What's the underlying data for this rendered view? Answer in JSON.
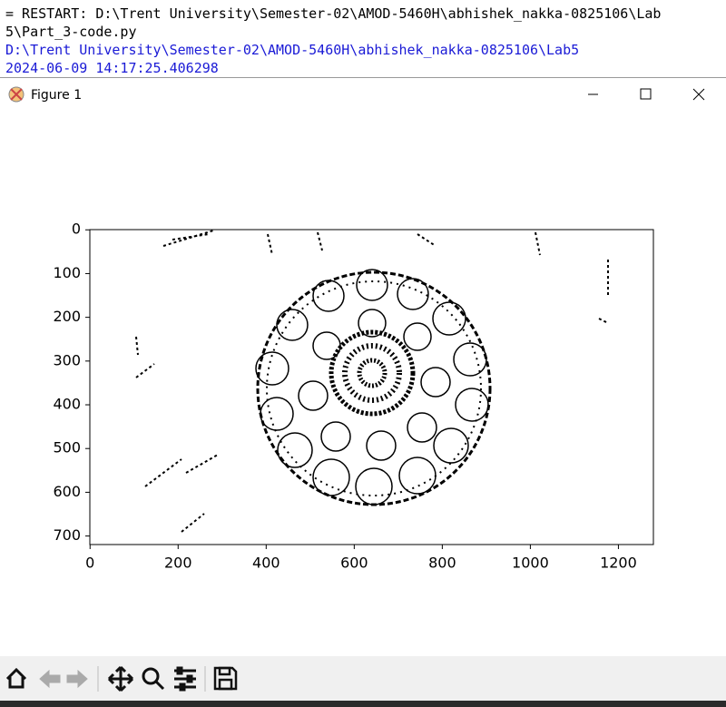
{
  "console": {
    "lines": [
      "= RESTART: D:\\Trent University\\Semester-02\\AMOD-5460H\\abhishek_nakka-0825106\\Lab",
      "5\\Part_3-code.py",
      "D:\\Trent University\\Semester-02\\AMOD-5460H\\abhishek_nakka-0825106\\Lab5",
      "2024-06-09 14:17:25.406298"
    ]
  },
  "window": {
    "title": "Figure 1"
  },
  "chart_data": {
    "type": "image",
    "xlim": [
      -0.5,
      1279.5
    ],
    "ylim": [
      719.5,
      -0.5
    ],
    "xticks": [
      0,
      200,
      400,
      600,
      800,
      1000,
      1200
    ],
    "yticks": [
      0,
      100,
      200,
      300,
      400,
      500,
      600,
      700
    ]
  }
}
